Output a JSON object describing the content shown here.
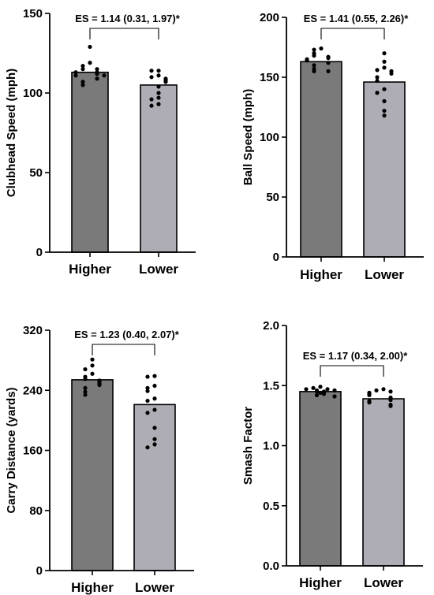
{
  "chart_data": [
    {
      "type": "bar",
      "title": "",
      "xlabel": "",
      "ylabel": "Clubhead Speed (mph)",
      "categories": [
        "Higher",
        "Lower"
      ],
      "values": [
        113,
        105
      ],
      "ylim": [
        0,
        150
      ],
      "yticks": [
        0,
        50,
        100,
        150
      ],
      "bar_colors": [
        "#7a7a7a",
        "#aeadb5"
      ],
      "annotation": "ES = 1.14 (0.31, 1.97)*",
      "points": [
        [
          129,
          119,
          117,
          115,
          115,
          113,
          113,
          112,
          111,
          111,
          109,
          107,
          105
        ],
        [
          114,
          114,
          111,
          110,
          109,
          108,
          107,
          104,
          100,
          97,
          96,
          93,
          92
        ]
      ]
    },
    {
      "type": "bar",
      "title": "",
      "xlabel": "",
      "ylabel": "Ball Speed (mph)",
      "categories": [
        "Higher",
        "Lower"
      ],
      "values": [
        163,
        146
      ],
      "ylim": [
        0,
        200
      ],
      "yticks": [
        0,
        50,
        100,
        150,
        200
      ],
      "bar_colors": [
        "#7a7a7a",
        "#aeadb5"
      ],
      "annotation": "ES = 1.41 (0.55, 2.26)*",
      "points": [
        [
          174,
          173,
          170,
          168,
          167,
          166,
          165,
          164,
          162,
          160,
          157,
          155,
          155
        ],
        [
          170,
          163,
          158,
          156,
          155,
          153,
          150,
          147,
          140,
          137,
          130,
          122,
          118
        ]
      ]
    },
    {
      "type": "bar",
      "title": "",
      "xlabel": "",
      "ylabel": "Carry Distance (yards)",
      "categories": [
        "Higher",
        "Lower"
      ],
      "values": [
        254,
        221
      ],
      "ylim": [
        0,
        320
      ],
      "yticks": [
        0,
        80,
        160,
        240,
        320
      ],
      "bar_colors": [
        "#7a7a7a",
        "#aeadb5"
      ],
      "annotation": "ES = 1.23 (0.40, 2.07)*",
      "points": [
        [
          281,
          273,
          268,
          262,
          258,
          255,
          253,
          251,
          249,
          247,
          243,
          238,
          234
        ],
        [
          259,
          258,
          246,
          243,
          239,
          229,
          226,
          214,
          210,
          190,
          175,
          168,
          164
        ]
      ]
    },
    {
      "type": "bar",
      "title": "",
      "xlabel": "",
      "ylabel": "Smash Factor",
      "categories": [
        "Higher",
        "Lower"
      ],
      "values": [
        1.45,
        1.39
      ],
      "ylim": [
        0,
        2.0
      ],
      "yticks": [
        0.0,
        0.5,
        1.0,
        1.5,
        2.0
      ],
      "bar_colors": [
        "#7a7a7a",
        "#aeadb5"
      ],
      "annotation": "ES = 1.17 (0.34, 2.00)*",
      "points": [
        [
          1.49,
          1.48,
          1.47,
          1.47,
          1.46,
          1.46,
          1.45,
          1.45,
          1.44,
          1.44,
          1.43,
          1.42,
          1.41
        ],
        [
          1.47,
          1.46,
          1.45,
          1.44,
          1.43,
          1.42,
          1.4,
          1.39,
          1.38,
          1.37,
          1.36,
          1.34,
          1.33
        ]
      ]
    }
  ]
}
